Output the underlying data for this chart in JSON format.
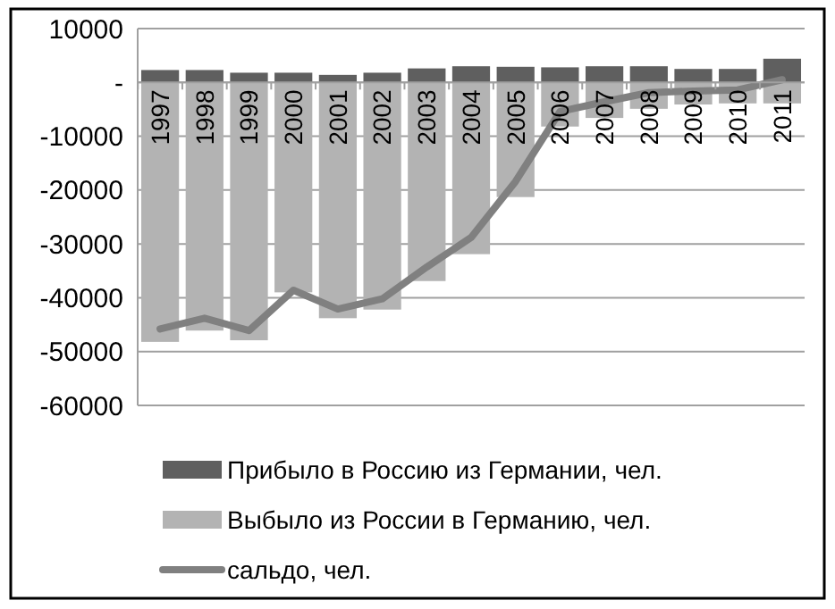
{
  "chart_data": {
    "type": "bar",
    "stacked": true,
    "categories": [
      "1997",
      "1998",
      "1999",
      "2000",
      "2001",
      "2002",
      "2003",
      "2004",
      "2005",
      "2006",
      "2007",
      "2008",
      "2009",
      "2010",
      "2011"
    ],
    "series": [
      {
        "name": "Прибыло в Россию из Германии, чел.",
        "color": "#5f5f5f",
        "values": [
          2300,
          2300,
          1800,
          1800,
          1400,
          1800,
          2600,
          3000,
          2900,
          2800,
          3000,
          3000,
          2500,
          2500,
          4400
        ]
      },
      {
        "name": "Выбыло из России в Германию, чел.",
        "color": "#b3b3b3",
        "values": [
          -48200,
          -46100,
          -47900,
          -39000,
          -43800,
          -42200,
          -36900,
          -31900,
          -21300,
          -8200,
          -6600,
          -4900,
          -4100,
          -3900,
          -3900
        ]
      },
      {
        "name": "сальдо, чел.",
        "type": "line",
        "color": "#808080",
        "values": [
          -45800,
          -43800,
          -46100,
          -38600,
          -42100,
          -40200,
          -34300,
          -28800,
          -18400,
          -5400,
          -3600,
          -1900,
          -1600,
          -1400,
          500
        ]
      }
    ],
    "ylim": [
      -60000,
      10000
    ],
    "yticks": [
      -60000,
      -50000,
      -40000,
      -30000,
      -20000,
      -10000,
      {
        "value": 0,
        "label": "-"
      },
      10000
    ],
    "grid": "y",
    "legend": "bottom",
    "marker": "none",
    "line_style": "solid"
  }
}
